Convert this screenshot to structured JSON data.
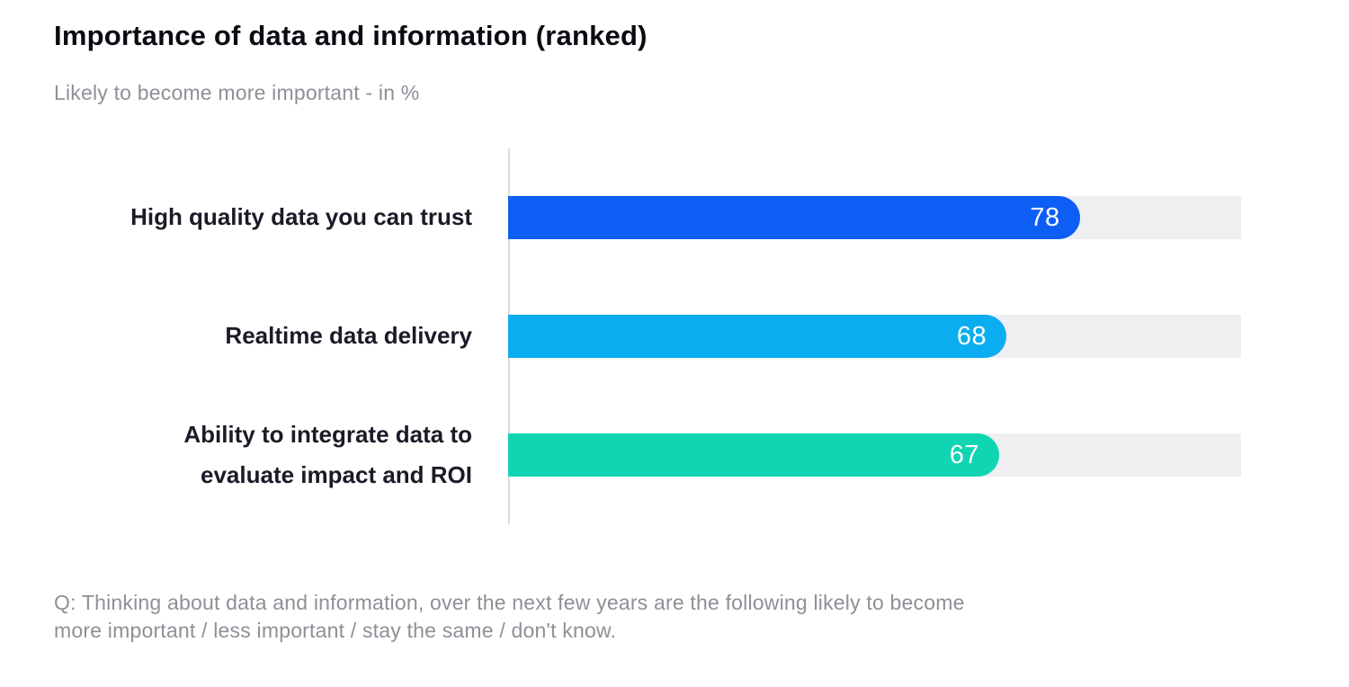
{
  "title": "Importance of data and information (ranked)",
  "subtitle": "Likely to become more important - in %",
  "footnote": "Q: Thinking about data and information, over the next few years are the following likely to become\nmore important / less important / stay the same / don't know.",
  "chart_data": {
    "type": "bar",
    "orientation": "horizontal",
    "title": "Importance of data and information (ranked)",
    "subtitle": "Likely to become more important - in %",
    "categories": [
      "High quality data you can trust",
      "Realtime data delivery",
      "Ability to integrate data to\nevaluate impact and ROI"
    ],
    "values": [
      78,
      68,
      67
    ],
    "value_suffix": "",
    "unit": "%",
    "xlim": [
      0,
      100
    ],
    "bar_colors": [
      "#0d5ef5",
      "#0aaef0",
      "#10d5b2"
    ],
    "track_color": "#efeff1",
    "axis_color": "#dcdce1",
    "value_label_color": "#ffffff",
    "grid": false,
    "legend": false
  }
}
